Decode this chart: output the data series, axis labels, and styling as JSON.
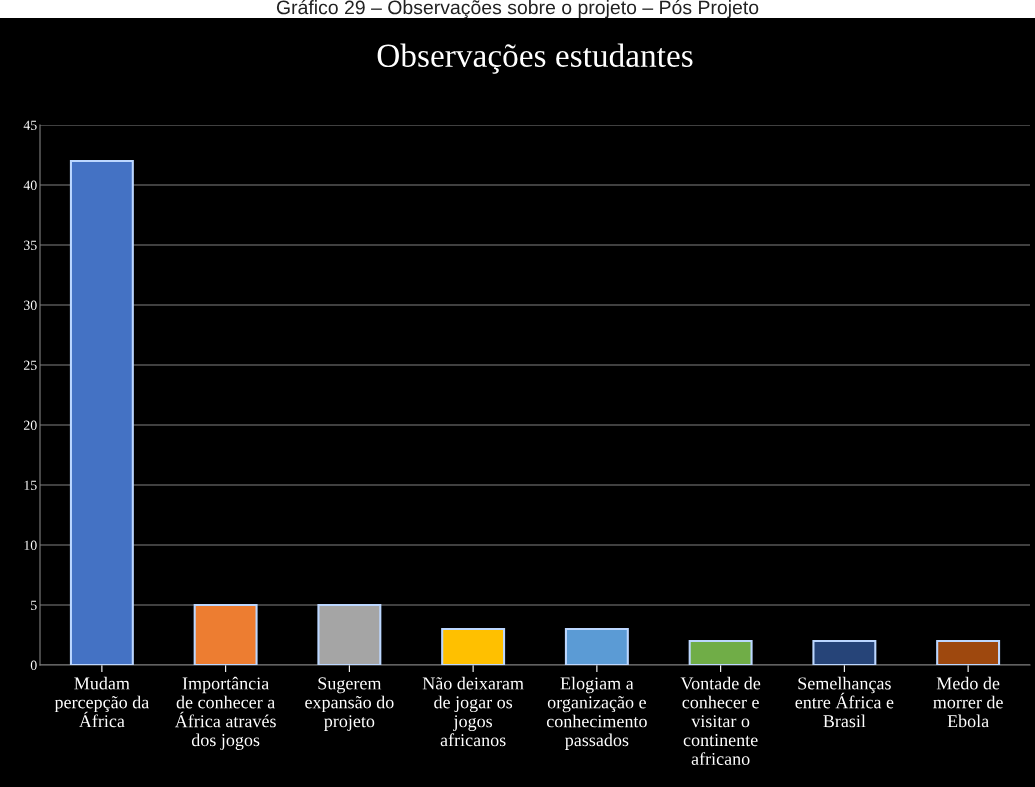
{
  "chart_data": {
    "type": "bar",
    "title": "Observações estudantes",
    "annotations": [
      "Gráfico 29 – Observações sobre o projeto – Pós Projeto"
    ],
    "categories": [
      "Mudam\npercepção da\nÁfrica",
      "Importância\nde conhecer a\nÁfrica através\ndos jogos",
      "Sugerem\nexpansão do\nprojeto",
      "Não deixaram\nde jogar os\njogos\nafricanos",
      "Elogiam a\norganização e\nconhecimento\npassados",
      "Vontade de\nconhecer e\nvisitar o\ncontinente\nafricano",
      "Semelhanças\nentre África e\nBrasil",
      "Medo de\nmorrer de\nEbola"
    ],
    "values": [
      42,
      5,
      5,
      3,
      3,
      2,
      2,
      2
    ],
    "colors": [
      "#4472c4",
      "#ed7d31",
      "#a5a5a5",
      "#ffc000",
      "#5b9bd5",
      "#70ad47",
      "#264478",
      "#9e480e"
    ],
    "ylim": [
      0,
      45
    ],
    "yticks": [
      0,
      5,
      10,
      15,
      20,
      25,
      30,
      35,
      40,
      45
    ],
    "grid": "y",
    "legend": false
  }
}
